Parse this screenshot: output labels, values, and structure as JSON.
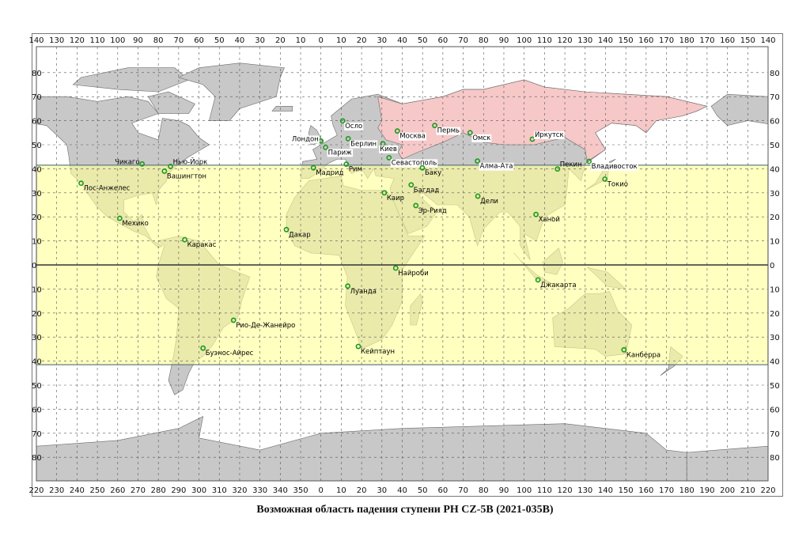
{
  "map": {
    "top_axis_labels": [
      "140",
      "130",
      "120",
      "110",
      "100",
      "90",
      "80",
      "70",
      "60",
      "50",
      "40",
      "30",
      "20",
      "10",
      "0",
      "10",
      "20",
      "30",
      "40",
      "50",
      "60",
      "70",
      "80",
      "90",
      "100",
      "110",
      "120",
      "130",
      "140",
      "150",
      "160",
      "170",
      "180",
      "170",
      "160",
      "150",
      "140"
    ],
    "bottom_axis_labels": [
      "220",
      "230",
      "240",
      "250",
      "260",
      "270",
      "280",
      "290",
      "300",
      "310",
      "320",
      "330",
      "340",
      "350",
      "0",
      "10",
      "20",
      "30",
      "40",
      "50",
      "60",
      "70",
      "80",
      "90",
      "100",
      "110",
      "120",
      "130",
      "140",
      "150",
      "160",
      "170",
      "180",
      "190",
      "200",
      "210",
      "220"
    ],
    "lat_axis_labels": [
      "80",
      "70",
      "60",
      "50",
      "40",
      "30",
      "20",
      "10",
      "0",
      "10",
      "20",
      "30",
      "40",
      "50",
      "60",
      "70",
      "80"
    ],
    "lon_range": [
      -140,
      220
    ],
    "impact_zone_lat": [
      -41.5,
      41.5
    ],
    "colors": {
      "land": "#c8c8c8",
      "russia": "#f6c8c8",
      "zone": "#ffff99",
      "zone_edge": "#5a7a78",
      "city_dot": "#1a9a1a",
      "grid": "#555555"
    },
    "cities": [
      {
        "name": "Чикаго",
        "lon": -88,
        "lat": 42,
        "side": "left"
      },
      {
        "name": "Нью-Йорк",
        "lon": -74,
        "lat": 41,
        "side": "up"
      },
      {
        "name": "Вашингтон",
        "lon": -77,
        "lat": 39,
        "side": "right"
      },
      {
        "name": "Лос-Анжелес",
        "lon": -118,
        "lat": 34,
        "side": "right"
      },
      {
        "name": "Мехико",
        "lon": -99,
        "lat": 19.4,
        "side": "right"
      },
      {
        "name": "Каракас",
        "lon": -67,
        "lat": 10.5,
        "side": "right"
      },
      {
        "name": "Рио-Де-Жанейро",
        "lon": -43,
        "lat": -23,
        "side": "right"
      },
      {
        "name": "Буэнос-Айрес",
        "lon": -58,
        "lat": -34.6,
        "side": "right"
      },
      {
        "name": "Дакар",
        "lon": -17,
        "lat": 14.7,
        "side": "right"
      },
      {
        "name": "Мадрид",
        "lon": -3.7,
        "lat": 40.4,
        "side": "right"
      },
      {
        "name": "Лондон",
        "lon": 0,
        "lat": 51.5,
        "side": "left"
      },
      {
        "name": "Париж",
        "lon": 2.3,
        "lat": 48.9,
        "side": "right"
      },
      {
        "name": "Осло",
        "lon": 10.7,
        "lat": 59.9,
        "side": "right"
      },
      {
        "name": "Берлин",
        "lon": 13.4,
        "lat": 52.5,
        "side": "right"
      },
      {
        "name": "Рим",
        "lon": 12.5,
        "lat": 41.9,
        "side": "right"
      },
      {
        "name": "Киев",
        "lon": 30.5,
        "lat": 50.4,
        "side": "below"
      },
      {
        "name": "Севастополь",
        "lon": 33.5,
        "lat": 44.6,
        "side": "right"
      },
      {
        "name": "Москва",
        "lon": 37.6,
        "lat": 55.7,
        "side": "right"
      },
      {
        "name": "Пермь",
        "lon": 56,
        "lat": 58,
        "side": "right"
      },
      {
        "name": "Омск",
        "lon": 73.4,
        "lat": 55,
        "side": "right"
      },
      {
        "name": "Иркутск",
        "lon": 104,
        "lat": 52.3,
        "side": "rightup"
      },
      {
        "name": "Алма-Ата",
        "lon": 77,
        "lat": 43.2,
        "side": "right"
      },
      {
        "name": "Пекин",
        "lon": 116.4,
        "lat": 39.9,
        "side": "rightup"
      },
      {
        "name": "Владивосток",
        "lon": 131.9,
        "lat": 43.1,
        "side": "right"
      },
      {
        "name": "Токио",
        "lon": 139.7,
        "lat": 35.7,
        "side": "right"
      },
      {
        "name": "Баку",
        "lon": 49.9,
        "lat": 40.4,
        "side": "right"
      },
      {
        "name": "Багдад",
        "lon": 44.4,
        "lat": 33.3,
        "side": "right"
      },
      {
        "name": "Каир",
        "lon": 31.2,
        "lat": 30,
        "side": "right"
      },
      {
        "name": "Эр-Рияд",
        "lon": 46.7,
        "lat": 24.7,
        "side": "right"
      },
      {
        "name": "Дели",
        "lon": 77.2,
        "lat": 28.6,
        "side": "right"
      },
      {
        "name": "Ханой",
        "lon": 105.8,
        "lat": 21,
        "side": "right"
      },
      {
        "name": "Джакарта",
        "lon": 106.8,
        "lat": -6.2,
        "side": "right"
      },
      {
        "name": "Найроби",
        "lon": 36.8,
        "lat": -1.3,
        "side": "right"
      },
      {
        "name": "Луанда",
        "lon": 13.2,
        "lat": -8.8,
        "side": "right"
      },
      {
        "name": "Кейптаун",
        "lon": 18.4,
        "lat": -33.9,
        "side": "right"
      },
      {
        "name": "Канберра",
        "lon": 149.1,
        "lat": -35.3,
        "side": "right"
      }
    ]
  },
  "caption": "Возможная область падения ступени РН CZ-5B (2021-035B)"
}
